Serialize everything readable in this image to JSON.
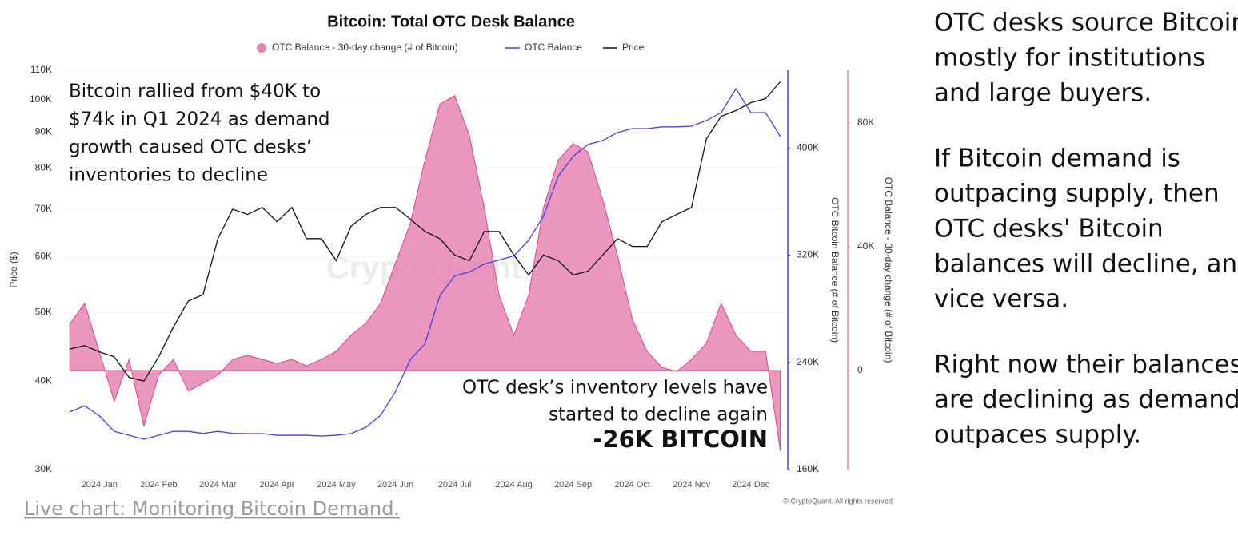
{
  "chart_data": {
    "type": "combo",
    "title": "Bitcoin: Total OTC Desk Balance",
    "watermark": "CryptoQuant",
    "copyright": "© CryptoQuant. All rights reserved",
    "categories": [
      null,
      null,
      "2024 Jan",
      null,
      null,
      null,
      "2024 Feb",
      null,
      null,
      null,
      "2024 Mar",
      null,
      null,
      null,
      "2024 Apr",
      null,
      null,
      null,
      "2024 May",
      null,
      null,
      null,
      "2024 Jun",
      null,
      null,
      null,
      "2024 Jul",
      null,
      null,
      null,
      "2024 Aug",
      null,
      null,
      null,
      "2024 Sep",
      null,
      null,
      null,
      "2024 Oct",
      null,
      null,
      null,
      "2024 Nov",
      null,
      null,
      null,
      "2024 Dec",
      null,
      null
    ],
    "y_label": "Price ($)",
    "y2_label": "OTC Bitcoin Balance (# of Bitcoin)",
    "y3_label": "OTC Balance - 30-day change (# of Bitcoin)",
    "yscale": "log",
    "ylim": [
      30000,
      110000
    ],
    "yticks": [
      {
        "value": 30000,
        "label": "30K"
      },
      {
        "value": 40000,
        "label": "40K"
      },
      {
        "value": 50000,
        "label": "50K"
      },
      {
        "value": 60000,
        "label": "60K"
      },
      {
        "value": 70000,
        "label": "70K"
      },
      {
        "value": 80000,
        "label": "80K"
      },
      {
        "value": 90000,
        "label": "90K"
      },
      {
        "value": 100000,
        "label": "100K"
      },
      {
        "value": 110000,
        "label": "110K"
      }
    ],
    "y2lim": [
      160000,
      458000
    ],
    "y2ticks": [
      {
        "value": 160000,
        "label": "160K"
      },
      {
        "value": 240000,
        "label": "240K"
      },
      {
        "value": 320000,
        "label": "320K"
      },
      {
        "value": 400000,
        "label": "400K"
      }
    ],
    "y3lim": [
      -32000,
      97000
    ],
    "y3ticks": [
      0,
      {
        "value": 40000,
        "label": "40K"
      },
      {
        "value": 80000,
        "label": "80K"
      }
    ],
    "grid": true,
    "series": [
      {
        "name": "OTC Balance - 30-day change (# of Bitcoin)",
        "kind": "area",
        "axis": "y3",
        "color": "#e585b4",
        "values": [
          15000,
          21700,
          6000,
          -10000,
          3600,
          -18000,
          -1500,
          3600,
          -6700,
          -4100,
          -1500,
          3600,
          4900,
          3600,
          2300,
          3600,
          1500,
          3600,
          6200,
          11400,
          15200,
          21700,
          34600,
          47500,
          68000,
          86000,
          88800,
          75900,
          52600,
          24300,
          11400,
          24300,
          52600,
          68000,
          73300,
          70700,
          55200,
          37200,
          16500,
          6200,
          1000,
          -300,
          3600,
          8800,
          21700,
          11400,
          6200,
          6200,
          -26000
        ]
      },
      {
        "name": "OTC Balance",
        "kind": "line",
        "axis": "y2",
        "color": "#4f3ee0",
        "values": [
          203000,
          207600,
          200000,
          188500,
          185600,
          182600,
          185600,
          188500,
          188500,
          187000,
          188500,
          187000,
          186800,
          186800,
          185600,
          185600,
          185600,
          185000,
          185600,
          186800,
          191500,
          200400,
          218000,
          242000,
          254000,
          289700,
          304500,
          307500,
          313400,
          316400,
          319400,
          331300,
          349000,
          379000,
          393700,
          402600,
          405600,
          411600,
          414500,
          414500,
          415800,
          415800,
          416300,
          420500,
          426400,
          444300,
          426400,
          426400,
          408600
        ]
      },
      {
        "name": "Price",
        "kind": "line",
        "axis": "y",
        "color": "#111111",
        "values": [
          44400,
          44900,
          44000,
          43300,
          40500,
          40000,
          43300,
          47700,
          51900,
          53000,
          63600,
          70000,
          68800,
          70400,
          67200,
          70400,
          63600,
          63600,
          59200,
          66200,
          68800,
          70400,
          70400,
          67800,
          65100,
          63600,
          60300,
          59200,
          65100,
          65100,
          60300,
          56500,
          60300,
          59200,
          56500,
          57200,
          60300,
          63600,
          62000,
          62000,
          67200,
          68800,
          70400,
          88000,
          94700,
          96500,
          99000,
          100300,
          106000
        ]
      }
    ],
    "annotations": [
      {
        "lines": [
          "Bitcoin rallied from $40K to",
          "$74k in Q1 2024 as demand",
          "growth caused OTC desks’",
          "inventories to decline"
        ]
      },
      {
        "lines": [
          "OTC desk’s inventory levels have",
          "started to decline again"
        ],
        "emphasis": "-26K BITCOIN"
      }
    ]
  },
  "side_text": [
    [
      "OTC desks source Bitcoin",
      "mostly for institutions",
      "and large buyers."
    ],
    [
      "If Bitcoin demand is",
      "outpacing supply, then",
      "OTC desks' Bitcoin",
      "balances will decline, and",
      "vice versa."
    ],
    [
      "Right now their balances",
      "are declining as demand",
      "outpaces supply."
    ]
  ],
  "link": "Live chart: Monitoring Bitcoin Demand."
}
